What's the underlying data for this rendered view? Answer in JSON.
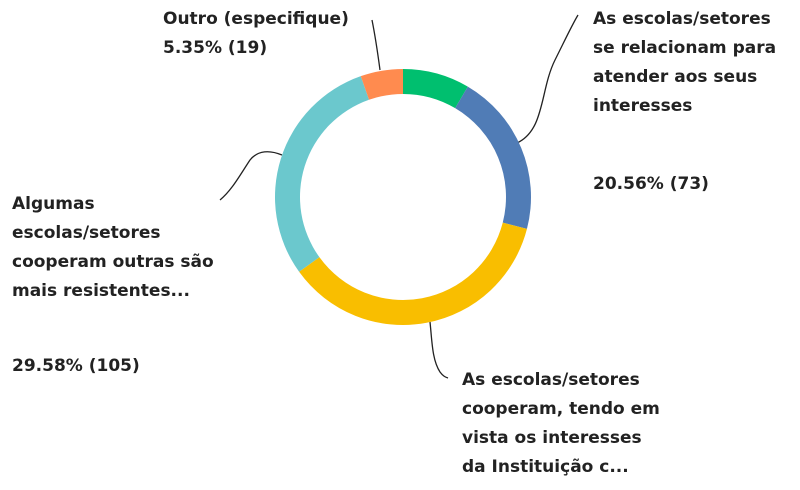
{
  "chart_data": {
    "type": "donut",
    "categories": [
      null,
      "As escolas/setores\nse relacionam para\natender aos seus\ninteresses",
      "As escolas/setores\ncooperam, tendo em\nvista os interesses\nda Instituição c...",
      "Algumas\nescolas/setores\ncooperam outras são\nmais resistentes...",
      "Outro (especifique)"
    ],
    "values": [
      8.45,
      20.56,
      36.06,
      29.58,
      5.35
    ],
    "value_labels": [
      null,
      "20.56% (73)",
      null,
      "29.58% (105)",
      "5.35% (19)"
    ],
    "colors": [
      "#00bf6f",
      "#507cb6",
      "#f9be00",
      "#6bc8cd",
      "#ff8b4f"
    ]
  }
}
